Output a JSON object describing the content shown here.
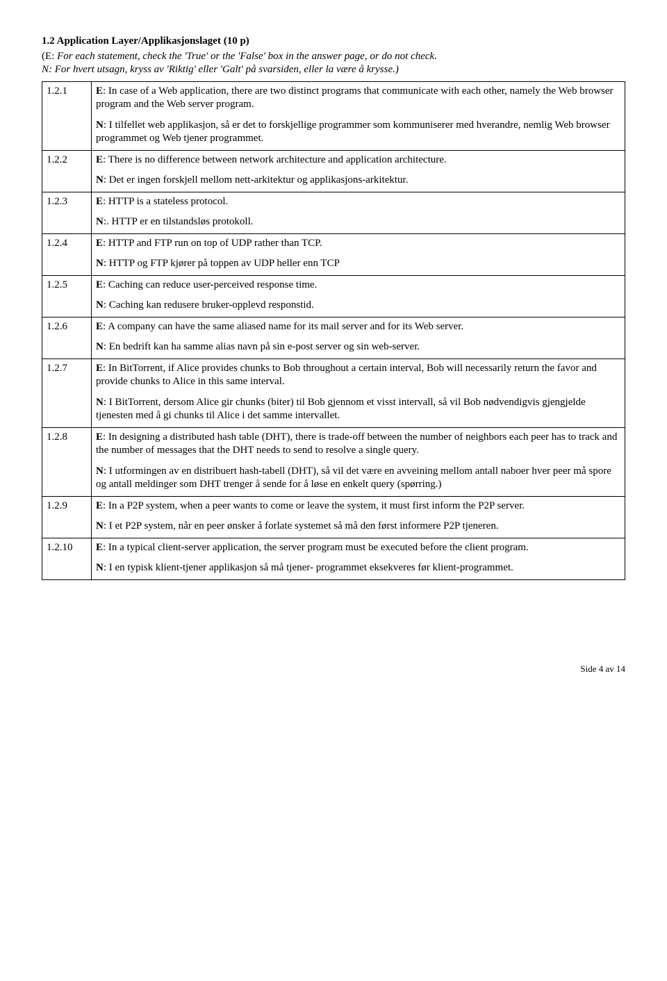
{
  "heading": "1.2 Application Layer/Applikasjonslaget (10 p)",
  "intro_e_label": "(E:",
  "intro_e_text": " For each statement, check the 'True' or the 'False' box in the answer page, or do not check.",
  "intro_n_label": "N:",
  "intro_n_text": " For hvert utsagn, kryss av 'Riktig' eller 'Galt' på svarsiden, eller la være å krysse.)",
  "rows": [
    {
      "num": "1.2.1",
      "paras": [
        [
          {
            "b": true,
            "t": "E"
          },
          {
            "t": ": In case of a Web application, there are two distinct programs that communicate with each other, namely the Web browser program and the Web server program."
          }
        ],
        [
          {
            "b": true,
            "t": "N"
          },
          {
            "t": ": I tilfellet web applikasjon, så er det to forskjellige programmer som kommuniserer med hverandre, nemlig Web browser programmet og Web tjener programmet."
          }
        ]
      ]
    },
    {
      "num": "1.2.2",
      "paras": [
        [
          {
            "b": true,
            "t": "E"
          },
          {
            "t": ": There is no difference between network architecture and application architecture."
          }
        ],
        [
          {
            "b": true,
            "t": "N"
          },
          {
            "t": ": Det er ingen forskjell mellom nett-arkitektur og applikasjons-arkitektur."
          }
        ]
      ]
    },
    {
      "num": "1.2.3",
      "paras": [
        [
          {
            "b": true,
            "t": "E"
          },
          {
            "t": ": HTTP is a stateless protocol."
          }
        ],
        [
          {
            "b": true,
            "t": "N"
          },
          {
            "t": ":. HTTP er en tilstandsløs protokoll."
          }
        ]
      ]
    },
    {
      "num": "1.2.4",
      "paras": [
        [
          {
            "b": true,
            "t": "E"
          },
          {
            "t": ": HTTP and FTP run on top of UDP rather than TCP."
          }
        ],
        [
          {
            "b": true,
            "t": "N"
          },
          {
            "t": ":  HTTP og FTP kjører på toppen av UDP heller enn TCP"
          }
        ]
      ]
    },
    {
      "num": "1.2.5",
      "paras": [
        [
          {
            "b": true,
            "t": "E"
          },
          {
            "t": ": Caching can reduce user-perceived response time."
          }
        ],
        [
          {
            "b": true,
            "t": "N"
          },
          {
            "t": ": Caching kan redusere bruker-opplevd responstid."
          }
        ]
      ]
    },
    {
      "num": "1.2.6",
      "paras": [
        [
          {
            "b": true,
            "t": "E"
          },
          {
            "t": ":  A company can have the same aliased name for its mail server and for its Web server."
          }
        ],
        [
          {
            "b": true,
            "t": "N"
          },
          {
            "t": ": En bedrift kan ha samme alias navn på sin e-post server og sin web-server."
          }
        ]
      ]
    },
    {
      "num": "1.2.7",
      "paras": [
        [
          {
            "b": true,
            "t": "E"
          },
          {
            "t": ": In BitTorrent, if Alice provides chunks to Bob throughout a certain interval, Bob will necessarily return the favor and provide chunks to Alice in this same interval."
          }
        ],
        [
          {
            "b": true,
            "t": "N"
          },
          {
            "t": ": I BitTorrent, dersom Alice gir chunks (biter) til Bob gjennom et visst intervall, så vil Bob nødvendigvis gjengjelde tjenesten med å gi chunks til Alice i det samme intervallet."
          }
        ]
      ]
    },
    {
      "num": "1.2.8",
      "paras": [
        [
          {
            "b": true,
            "t": "E"
          },
          {
            "t": ": In designing a distributed hash table (DHT), there is trade-off between the number of neighbors each peer has to track and the number of messages that the DHT needs to send to resolve a single query."
          }
        ],
        [
          {
            "b": true,
            "t": "N"
          },
          {
            "t": ": I utformingen av en distribuert hash-tabell (DHT), så vil det være en avveining mellom antall naboer hver peer må spore og antall meldinger som  DHT trenger å sende for å løse en enkelt query (spørring.)"
          }
        ]
      ]
    },
    {
      "num": "1.2.9",
      "paras": [
        [
          {
            "b": true,
            "t": "E"
          },
          {
            "t": ":  In a P2P system, when a peer wants to come or leave the system, it must first inform the P2P server."
          }
        ],
        [
          {
            "b": true,
            "t": "N"
          },
          {
            "t": ": I et P2P system, når en peer ønsker å forlate systemet så må den først informere P2P tjeneren."
          }
        ]
      ]
    },
    {
      "num": "1.2.10",
      "paras": [
        [
          {
            "b": true,
            "t": "E"
          },
          {
            "t": ": In a typical client-server application, the server program must be executed before the client program."
          }
        ],
        [
          {
            "b": true,
            "t": "N"
          },
          {
            "t": ": I en typisk klient-tjener applikasjon så må tjener- programmet eksekveres før klient-programmet."
          }
        ]
      ]
    }
  ],
  "footer": "Side 4 av 14"
}
